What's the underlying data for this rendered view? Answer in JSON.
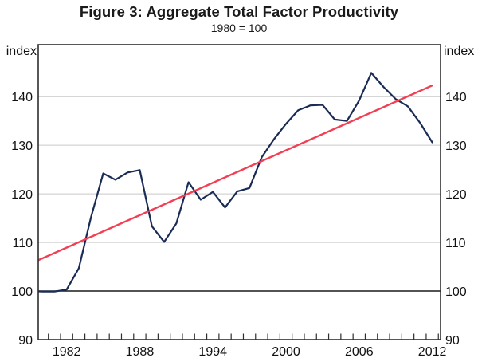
{
  "figure": {
    "title": "Figure 3: Aggregate Total Factor Productivity",
    "subtitle": "1980 = 100",
    "left_axis_unit": "index",
    "right_axis_unit": "index"
  },
  "chart_data": {
    "type": "line",
    "title": "Figure 3: Aggregate Total Factor Productivity",
    "subtitle": "1980 = 100",
    "xlabel": "",
    "ylabel": "index",
    "grid": "horizontal-only",
    "legend": "none",
    "y_range": [
      90,
      150.7
    ],
    "x_range": [
      1980.17,
      2013.18
    ],
    "y_ticks": [
      90,
      100,
      110,
      120,
      130,
      140
    ],
    "y_gridlines": [
      110,
      120,
      130,
      140
    ],
    "reference_line": 100,
    "x_minor_ticks": {
      "start": 1981,
      "end": 2013,
      "step": 1
    },
    "x_labels": [
      {
        "text": "1982",
        "pos": 1982.5
      },
      {
        "text": "1988",
        "pos": 1988.5
      },
      {
        "text": "1994",
        "pos": 1994.5
      },
      {
        "text": "2000",
        "pos": 2000.5
      },
      {
        "text": "2006",
        "pos": 2006.5
      },
      {
        "text": "2012",
        "pos": 2012.5
      }
    ],
    "series": [
      {
        "name": "Aggregate total factor productivity",
        "color": "#1a2c55",
        "stroke_width": 2.2,
        "x": [
          1979.5,
          1980.5,
          1981.5,
          1982.5,
          1983.5,
          1984.5,
          1985.5,
          1986.5,
          1987.5,
          1988.5,
          1989.5,
          1990.5,
          1991.5,
          1992.5,
          1993.5,
          1994.5,
          1995.5,
          1996.5,
          1997.5,
          1998.5,
          1999.5,
          2000.5,
          2001.5,
          2002.5,
          2003.5,
          2004.5,
          2005.5,
          2006.5,
          2007.5,
          2008.5,
          2009.5,
          2010.5,
          2011.5,
          2012.5
        ],
        "values": [
          100.0,
          99.9,
          99.9,
          100.3,
          104.7,
          115.2,
          124.2,
          122.9,
          124.4,
          124.9,
          113.3,
          110.1,
          113.9,
          122.4,
          118.8,
          120.4,
          117.2,
          120.5,
          121.2,
          127.5,
          131.2,
          134.4,
          137.2,
          138.2,
          138.3,
          135.3,
          135.0,
          139.2,
          144.9,
          142.0,
          139.5,
          138.0,
          134.6,
          130.6
        ]
      },
      {
        "name": "Linear trend",
        "color": "#f23f53",
        "stroke_width": 2.4,
        "x": [
          1979.5,
          2012.5
        ],
        "values": [
          105.6,
          142.3
        ]
      }
    ],
    "colors": {
      "series": "#1a2c55",
      "trend": "#f23f53",
      "gridline": "#c9c9c9",
      "reference_line": "#1a1a1a",
      "axis_frame": "#2e2e2e",
      "text": "#111111"
    }
  }
}
